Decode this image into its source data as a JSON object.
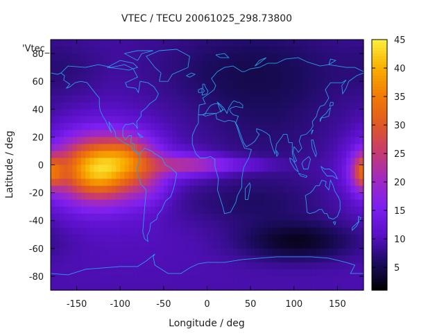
{
  "chart_data": {
    "type": "heatmap",
    "title": "VTEC / TECU 20061025_298.73800",
    "xlabel": "Longitude / deg",
    "ylabel": "Latitude / deg",
    "key_label": "'Vtec_",
    "xlim": [
      -180,
      180
    ],
    "ylim": [
      -90,
      90
    ],
    "xticks": [
      -150,
      -100,
      -50,
      0,
      50,
      100,
      150
    ],
    "yticks": [
      -80,
      -60,
      -40,
      -20,
      0,
      20,
      40,
      60,
      80
    ],
    "colorbar": {
      "min": 1,
      "max": 45,
      "ticks": [
        5,
        10,
        15,
        20,
        25,
        30,
        35,
        40,
        45
      ],
      "colormap": [
        "#000000",
        "#1c0c60",
        "#5a10c8",
        "#7d1ff0",
        "#a12ac0",
        "#c83c6c",
        "#e05a22",
        "#f27c04",
        "#f8b000",
        "#fcf040"
      ]
    },
    "grid": false,
    "legend": "none",
    "features": [
      {
        "lon": -125,
        "lat": -3,
        "sx": 35,
        "sy": 16,
        "value": 32
      },
      {
        "lon": -90,
        "lat": 8,
        "sx": 18,
        "sy": 10,
        "value": 7
      },
      {
        "lon": -68,
        "lat": -7,
        "sx": 18,
        "sy": 15,
        "value": 6
      },
      {
        "lon": -25,
        "lat": 0,
        "sx": 28,
        "sy": 6,
        "value": 9
      },
      {
        "lon": 15,
        "lat": 0,
        "sx": 45,
        "sy": 4,
        "value": 6
      },
      {
        "lon": 180,
        "lat": -5,
        "sx": 10,
        "sy": 9,
        "value": 15
      },
      {
        "lon": 70,
        "lat": 30,
        "sx": 75,
        "sy": 45,
        "value": -4
      },
      {
        "lon": 45,
        "lat": -28,
        "sx": 70,
        "sy": 12,
        "value": -3
      },
      {
        "lon": 105,
        "lat": -55,
        "sx": 48,
        "sy": 10,
        "value": -7
      },
      {
        "lon": 30,
        "lat": 68,
        "sx": 90,
        "sy": 20,
        "value": -2.5
      },
      {
        "lon": -160,
        "lat": 68,
        "sx": 30,
        "sy": 15,
        "value": -2
      }
    ],
    "coastline_color": "#2a9fe8"
  }
}
